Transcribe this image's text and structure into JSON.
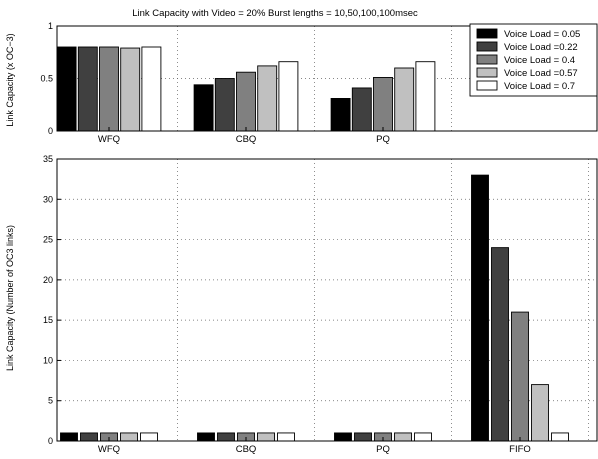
{
  "figure": {
    "title": "Link Capacity with Video = 20%  Burst lengths = 10,50,100,100msec"
  },
  "colors": {
    "series": [
      "#000000",
      "#404040",
      "#808080",
      "#c0c0c0",
      "#ffffff"
    ],
    "bar_stroke": "#000000",
    "grid": "#606060"
  },
  "chart_data": [
    {
      "type": "bar",
      "title": "Link Capacity with Video = 20%  Burst lengths = 10,50,100,100msec",
      "ylabel": "Link Capacity (x OC−3)",
      "xlabel": "",
      "categories": [
        "WFQ",
        "CBQ",
        "PQ"
      ],
      "ylim": [
        0,
        1
      ],
      "yticks": [
        0,
        0.5,
        1
      ],
      "ytick_labels": [
        "0",
        "0.5",
        "1"
      ],
      "grid": true,
      "legend_position": "top-right",
      "series": [
        {
          "name": "Voice Load = 0.05",
          "values": [
            0.8,
            0.44,
            0.31
          ]
        },
        {
          "name": "Voice Load =0.22",
          "values": [
            0.8,
            0.5,
            0.41
          ]
        },
        {
          "name": "Voice Load =  0.4",
          "values": [
            0.8,
            0.56,
            0.51
          ]
        },
        {
          "name": "Voice Load =0.57",
          "values": [
            0.79,
            0.62,
            0.6
          ]
        },
        {
          "name": "Voice Load =  0.7",
          "values": [
            0.8,
            0.66,
            0.66
          ]
        }
      ]
    },
    {
      "type": "bar",
      "title": "",
      "ylabel": "Link Capacity (Number of OC3 links)",
      "xlabel": "",
      "categories": [
        "WFQ",
        "CBQ",
        "PQ",
        "FIFO"
      ],
      "ylim": [
        0,
        35
      ],
      "yticks": [
        0,
        5,
        10,
        15,
        20,
        25,
        30,
        35
      ],
      "ytick_labels": [
        "0",
        "5",
        "10",
        "15",
        "20",
        "25",
        "30",
        "35"
      ],
      "grid": true,
      "series": [
        {
          "name": "Voice Load = 0.05",
          "values": [
            1,
            1,
            1,
            33
          ]
        },
        {
          "name": "Voice Load =0.22",
          "values": [
            1,
            1,
            1,
            24
          ]
        },
        {
          "name": "Voice Load =  0.4",
          "values": [
            1,
            1,
            1,
            16
          ]
        },
        {
          "name": "Voice Load =0.57",
          "values": [
            1,
            1,
            1,
            7
          ]
        },
        {
          "name": "Voice Load =  0.7",
          "values": [
            1,
            1,
            1,
            1
          ]
        }
      ]
    }
  ]
}
